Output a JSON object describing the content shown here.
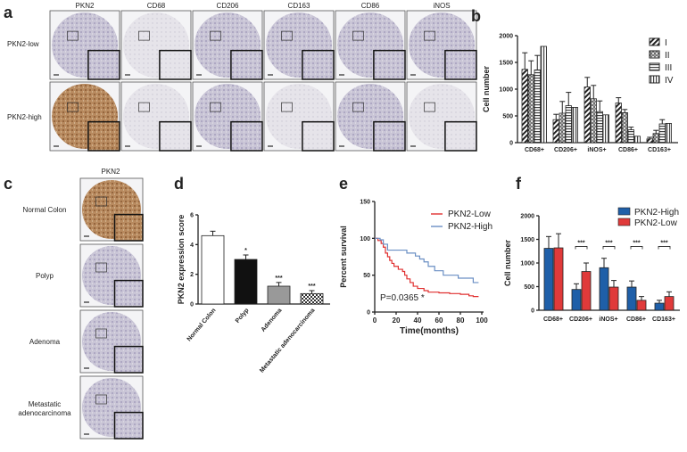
{
  "panel_labels": [
    "a",
    "b",
    "c",
    "d",
    "e",
    "f"
  ],
  "panel_a": {
    "columns": [
      "PKN2",
      "CD68",
      "CD206",
      "CD163",
      "CD86",
      "iNOS"
    ],
    "rows": [
      "PKN2-low",
      "PKN2-high"
    ]
  },
  "panel_c": {
    "column": "PKN2",
    "rows": [
      "Normal Colon",
      "Polyp",
      "Adenoma",
      "Metastatic adenocarcinoma"
    ]
  },
  "chart_data": [
    {
      "panel": "b",
      "type": "bar",
      "ylabel": "Cell number",
      "ylim": [
        0,
        2000
      ],
      "yticks": [
        0,
        500,
        1000,
        1500,
        2000
      ],
      "categories": [
        "CD68+",
        "CD206+",
        "iNOS+",
        "CD86+",
        "CD163+"
      ],
      "legend": "top-right",
      "series": [
        {
          "name": "I",
          "pattern": "diagonal",
          "values": [
            1370,
            430,
            1040,
            740,
            70
          ],
          "errors": [
            310,
            100,
            180,
            100,
            30
          ]
        },
        {
          "name": "II",
          "pattern": "crosshatch",
          "values": [
            1270,
            550,
            820,
            560,
            170
          ],
          "errors": [
            260,
            220,
            250,
            60,
            60
          ]
        },
        {
          "name": "III",
          "pattern": "horizontal",
          "values": [
            1360,
            690,
            580,
            240,
            350
          ],
          "errors": [
            270,
            250,
            200,
            50,
            80
          ]
        },
        {
          "name": "IV",
          "pattern": "vertical",
          "values": [
            1800,
            660,
            520,
            120,
            360
          ],
          "errors": [
            0,
            0,
            0,
            0,
            0
          ]
        }
      ]
    },
    {
      "panel": "d",
      "type": "bar",
      "ylabel": "PKN2 expression score",
      "ylim": [
        0,
        6
      ],
      "yticks": [
        0,
        2,
        4,
        6
      ],
      "categories": [
        "Normal Colon",
        "Polyp",
        "Adenoma",
        "Metastatic adenocarcinoma"
      ],
      "values": [
        4.6,
        3.0,
        1.2,
        0.7
      ],
      "errors": [
        0.3,
        0.3,
        0.25,
        0.2
      ],
      "annotations": [
        "",
        "*",
        "***",
        "***"
      ],
      "fills": [
        "#ffffff",
        "#111111",
        "#999999",
        "checker"
      ]
    },
    {
      "panel": "e",
      "type": "line",
      "xlabel": "Time(months)",
      "ylabel": "Percent survival",
      "xlim": [
        0,
        100
      ],
      "ylim": [
        0,
        150
      ],
      "xticks": [
        0,
        20,
        40,
        60,
        80,
        100
      ],
      "yticks": [
        0,
        50,
        100,
        150
      ],
      "annotation": "P=0.0365 *",
      "legend": "top-right",
      "series": [
        {
          "name": "PKN2-Low",
          "color": "#e03030",
          "points": [
            [
              0,
              100
            ],
            [
              3,
              97
            ],
            [
              6,
              93
            ],
            [
              8,
              88
            ],
            [
              10,
              80
            ],
            [
              12,
              75
            ],
            [
              14,
              70
            ],
            [
              16,
              66
            ],
            [
              18,
              62
            ],
            [
              22,
              58
            ],
            [
              26,
              55
            ],
            [
              28,
              50
            ],
            [
              30,
              45
            ],
            [
              33,
              40
            ],
            [
              36,
              35
            ],
            [
              40,
              32
            ],
            [
              46,
              29
            ],
            [
              50,
              27
            ],
            [
              60,
              26
            ],
            [
              70,
              25
            ],
            [
              80,
              24
            ],
            [
              88,
              22
            ],
            [
              92,
              21
            ],
            [
              97,
              21
            ]
          ]
        },
        {
          "name": "PKN2-High",
          "color": "#6a8fc4",
          "points": [
            [
              0,
              100
            ],
            [
              5,
              98
            ],
            [
              8,
              92
            ],
            [
              12,
              84
            ],
            [
              25,
              84
            ],
            [
              30,
              80
            ],
            [
              38,
              76
            ],
            [
              42,
              72
            ],
            [
              46,
              68
            ],
            [
              50,
              62
            ],
            [
              56,
              56
            ],
            [
              64,
              50
            ],
            [
              70,
              50
            ],
            [
              78,
              46
            ],
            [
              88,
              46
            ],
            [
              92,
              40
            ],
            [
              97,
              40
            ]
          ]
        }
      ]
    },
    {
      "panel": "f",
      "type": "bar",
      "ylabel": "Cell number",
      "ylim": [
        0,
        2000
      ],
      "yticks": [
        0,
        500,
        1000,
        1500,
        2000
      ],
      "categories": [
        "CD68+",
        "CD206+",
        "iNOS+",
        "CD86+",
        "CD163+"
      ],
      "annotations": [
        "",
        "***",
        "***",
        "***",
        "***"
      ],
      "legend": "top-right",
      "series": [
        {
          "name": "PKN2-High",
          "color": "#1f5fa8",
          "values": [
            1310,
            440,
            900,
            490,
            150
          ],
          "errors": [
            250,
            120,
            200,
            130,
            60
          ]
        },
        {
          "name": "PKN2-Low",
          "color": "#e03a3a",
          "values": [
            1320,
            820,
            490,
            210,
            290
          ],
          "errors": [
            300,
            180,
            140,
            80,
            100
          ]
        }
      ]
    }
  ]
}
